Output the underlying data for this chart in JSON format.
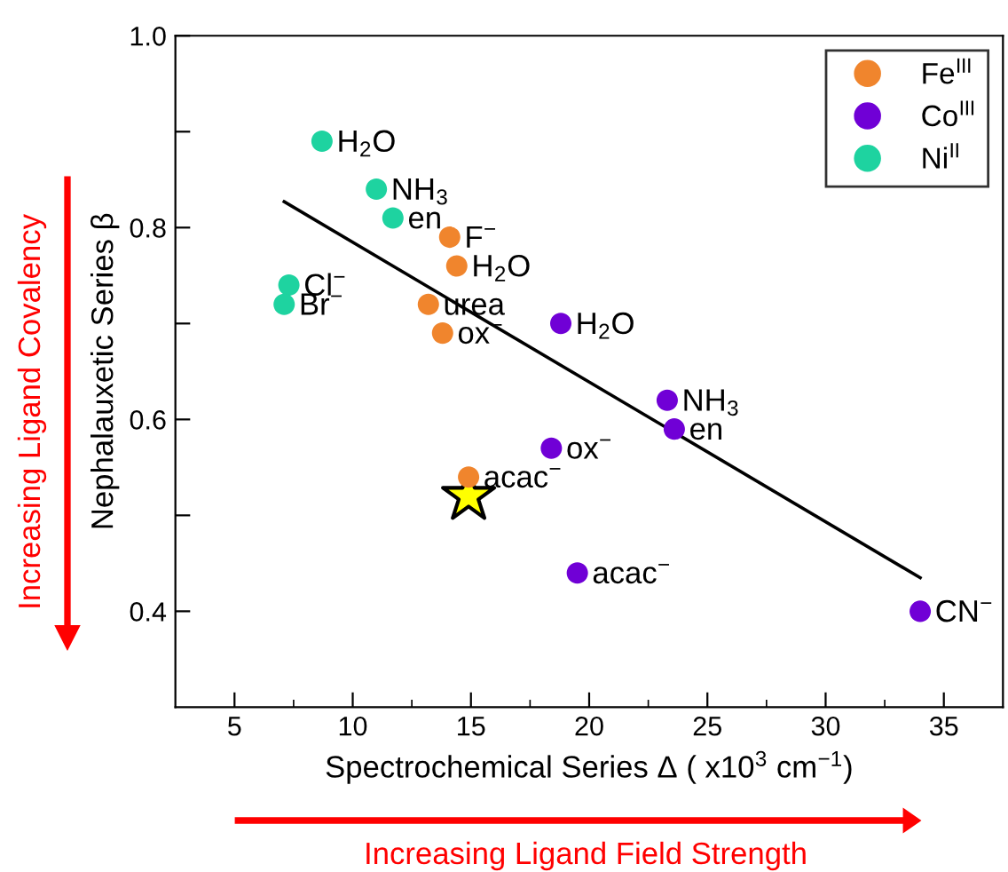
{
  "chart_data": {
    "type": "scatter",
    "xlabel": "Spectrochemical Series Δ ( x10$^{3}$ cm$^{−1}$)",
    "ylabel": "Nephalauxetic Series β",
    "xlim": [
      2.5,
      37.5
    ],
    "xticks": [
      5,
      10,
      15,
      20,
      25,
      30,
      35
    ],
    "ylim": [
      0.3,
      1.0
    ],
    "yticks": [
      {
        "value": 0.4,
        "label": "0.4"
      },
      {
        "value": 0.5,
        "label": null
      },
      {
        "value": 0.6,
        "label": "0.6"
      },
      {
        "value": 0.7,
        "label": null
      },
      {
        "value": 0.8,
        "label": "0.8"
      },
      {
        "value": 0.9,
        "label": null
      },
      {
        "value": 1.0,
        "label": "1.0"
      }
    ],
    "grid": false,
    "legend": "top right",
    "marker": "circle",
    "series": [
      {
        "name": "Fe$^{III}$",
        "color": "#f0852d",
        "x": [
          14.1,
          14.4,
          13.2,
          13.8,
          14.9
        ],
        "values": [
          0.79,
          0.76,
          0.72,
          0.69,
          0.54
        ]
      },
      {
        "name": "Co$^{III}$",
        "color": "#7000d6",
        "x": [
          18.8,
          23.3,
          23.6,
          18.4,
          19.5,
          34.0
        ],
        "values": [
          0.7,
          0.62,
          0.59,
          0.57,
          0.44,
          0.4
        ]
      },
      {
        "name": "Ni$^{II}$",
        "color": "#1ed3a0",
        "x": [
          8.7,
          11.0,
          11.7,
          7.3,
          7.1
        ],
        "values": [
          0.89,
          0.84,
          0.81,
          0.74,
          0.72
        ]
      },
      {
        "color": "#ffff00",
        "marker": "star",
        "x": [
          14.9
        ],
        "values": [
          0.52
        ]
      },
      {
        "type": "line",
        "color": "#000000",
        "marker": "none",
        "x": [
          7.1,
          34.0
        ],
        "values": [
          0.827,
          0.435
        ]
      }
    ],
    "annotations": [
      {
        "text": "H$_{2}$O",
        "x": 8.7,
        "y": 0.89
      },
      {
        "text": "NH$_{3}$",
        "x": 11.0,
        "y": 0.84
      },
      {
        "text": "en",
        "x": 11.7,
        "y": 0.81
      },
      {
        "text": "Cl$^{−}$",
        "x": 7.3,
        "y": 0.74
      },
      {
        "text": "Br$^{−}$",
        "x": 7.1,
        "y": 0.72
      },
      {
        "text": "F$^{−}$",
        "x": 14.1,
        "y": 0.79
      },
      {
        "text": "H$_{2}$O",
        "x": 14.4,
        "y": 0.76
      },
      {
        "text": "urea",
        "x": 13.2,
        "y": 0.72
      },
      {
        "text": "ox$^{−}$",
        "x": 13.8,
        "y": 0.69
      },
      {
        "text": "acac$^{−}$",
        "x": 14.9,
        "y": 0.54
      },
      {
        "text": "H$_{2}$O",
        "x": 18.8,
        "y": 0.7
      },
      {
        "text": "NH$_{3}$",
        "x": 23.3,
        "y": 0.62
      },
      {
        "text": "en",
        "x": 23.6,
        "y": 0.59
      },
      {
        "text": "ox$^{−}$",
        "x": 18.4,
        "y": 0.57
      },
      {
        "text": "acac$^{−}$",
        "x": 19.5,
        "y": 0.44
      },
      {
        "text": "CN$^{−}$",
        "x": 34.0,
        "y": 0.4
      },
      "Increasing Ligand Covalency",
      "Increasing Ligand Field Strength"
    ]
  }
}
